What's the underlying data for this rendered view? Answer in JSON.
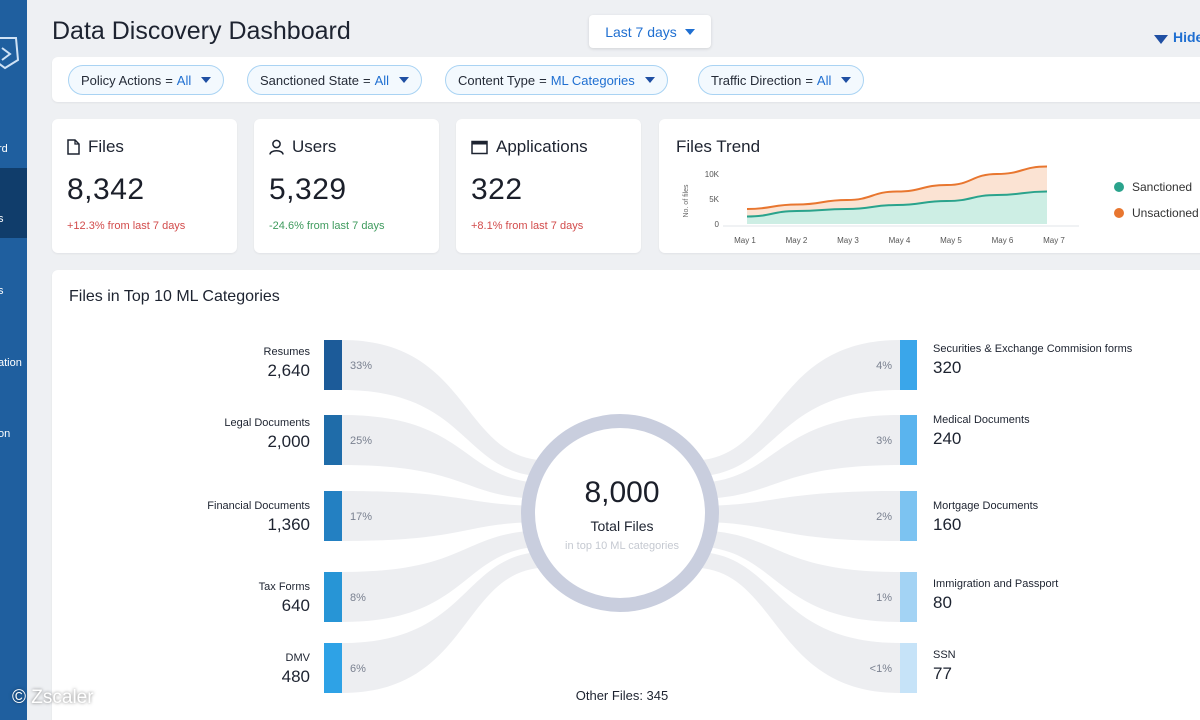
{
  "nav": {
    "labels": [
      "rd",
      "s",
      "s",
      "ation",
      "on"
    ]
  },
  "header": {
    "title": "Data Discovery Dashboard",
    "range": "Last 7 days",
    "hide_filters": "Hide"
  },
  "filters": [
    {
      "label": "Policy Actions",
      "value": "All"
    },
    {
      "label": "Sanctioned State",
      "value": "All"
    },
    {
      "label": "Content Type",
      "value": "ML Categories"
    },
    {
      "label": "Traffic Direction",
      "value": "All"
    }
  ],
  "stats": [
    {
      "title": "Files",
      "value": "8,342",
      "delta": "+12.3% from last 7 days",
      "trend": "up"
    },
    {
      "title": "Users",
      "value": "5,329",
      "delta": "-24.6% from last 7 days",
      "trend": "down"
    },
    {
      "title": "Applications",
      "value": "322",
      "delta": "+8.1% from last 7 days",
      "trend": "up"
    }
  ],
  "trend_card": {
    "title": "Files Trend",
    "legend": [
      "Sanctioned",
      "Unsactioned"
    ]
  },
  "chart_data": {
    "type": "area",
    "title": "Files Trend",
    "ylabel": "No. of files",
    "x": [
      "May 1",
      "May 2",
      "May 3",
      "May 4",
      "May 5",
      "May 6",
      "May 7"
    ],
    "yticks": [
      "10K",
      "5K",
      "0"
    ],
    "ylim": [
      0,
      10000
    ],
    "series": [
      {
        "name": "Sanctioned",
        "color": "#2aa38c",
        "values": [
          1500,
          2600,
          3000,
          3800,
          4600,
          5800,
          6500
        ]
      },
      {
        "name": "Unsactioned",
        "color": "#e8762f",
        "values": [
          3000,
          3900,
          4800,
          6500,
          7800,
          10000,
          11500
        ]
      }
    ],
    "legend_position": "right",
    "grid": false
  },
  "ml": {
    "title": "Files in Top 10 ML Categories",
    "total": "8,000",
    "total_label": "Total Files",
    "total_sub": "in top 10 ML categories",
    "other": "Other Files: 345",
    "left": [
      {
        "name": "Resumes",
        "count": "2,640",
        "pct": "33%",
        "color": "#1c5b99"
      },
      {
        "name": "Legal Documents",
        "count": "2,000",
        "pct": "25%",
        "color": "#1f6ca9"
      },
      {
        "name": "Financial Documents",
        "count": "1,360",
        "pct": "17%",
        "color": "#2380c2"
      },
      {
        "name": "Tax Forms",
        "count": "640",
        "pct": "8%",
        "color": "#2795d6"
      },
      {
        "name": "DMV",
        "count": "480",
        "pct": "6%",
        "color": "#2ea2e6"
      }
    ],
    "right": [
      {
        "name": "Securities & Exchange Commision forms",
        "count": "320",
        "pct": "4%",
        "color": "#3aa6ea"
      },
      {
        "name": "Medical Documents",
        "count": "240",
        "pct": "3%",
        "color": "#5ab4ee"
      },
      {
        "name": "Mortgage Documents",
        "count": "160",
        "pct": "2%",
        "color": "#7cc3f1"
      },
      {
        "name": "Immigration and Passport",
        "count": "80",
        "pct": "1%",
        "color": "#a3d3f4"
      },
      {
        "name": "SSN",
        "count": "77",
        "pct": "<1%",
        "color": "#c6e3f8"
      }
    ]
  },
  "watermark": "© Zscaler"
}
